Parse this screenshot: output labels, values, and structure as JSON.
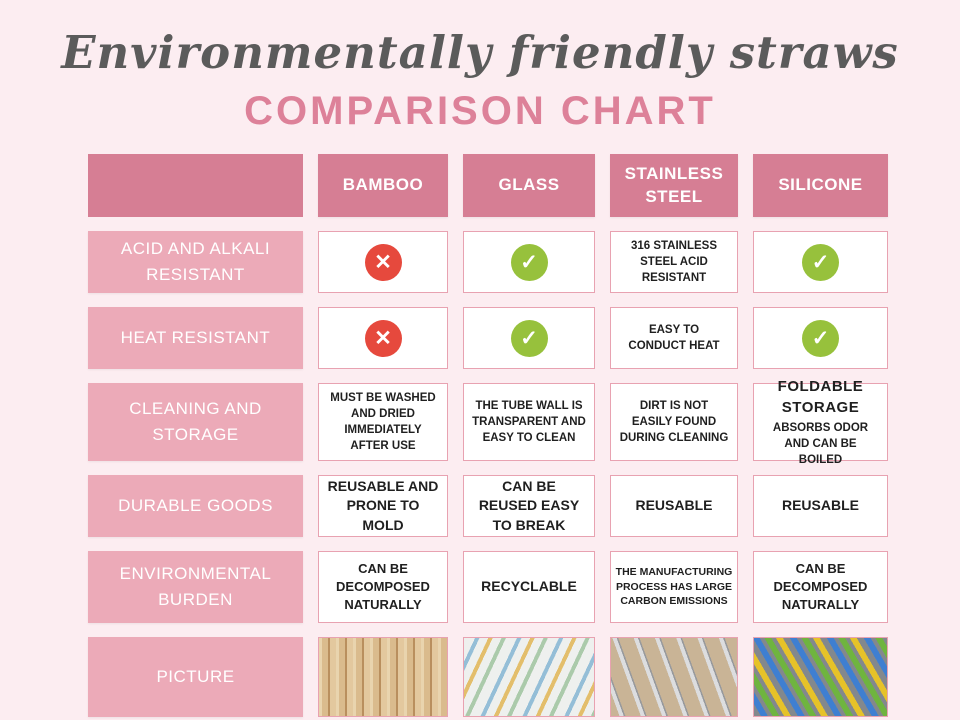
{
  "page": {
    "title_script": "Environmentally friendly straws",
    "title_main": "COMPARISON CHART"
  },
  "colors": {
    "background": "#fcedf1",
    "header_pink": "#d67e94",
    "label_pink": "#ecaab8",
    "title_pink": "#dd8199",
    "cell_border_pink": "#e8a2b1",
    "cross_red": "#e6493d",
    "check_green": "#97c13c"
  },
  "icons": {
    "cross": "✕",
    "check": "✓"
  },
  "table": {
    "columns": [
      "BAMBOO",
      "GLASS",
      "STAINLESS STEEL",
      "SILICONE"
    ],
    "rows": [
      {
        "label": "ACID AND ALKALI RESISTANT",
        "cells": [
          {
            "type": "cross"
          },
          {
            "type": "check"
          },
          {
            "type": "text",
            "text": "316 STAINLESS STEEL ACID RESISTANT"
          },
          {
            "type": "check"
          }
        ]
      },
      {
        "label": "HEAT RESISTANT",
        "cells": [
          {
            "type": "cross"
          },
          {
            "type": "check"
          },
          {
            "type": "text",
            "text": "EASY TO CONDUCT HEAT"
          },
          {
            "type": "check"
          }
        ]
      },
      {
        "label": "CLEANING AND STORAGE",
        "cells": [
          {
            "type": "text",
            "text": "MUST BE WASHED AND DRIED IMMEDIATELY AFTER USE"
          },
          {
            "type": "text",
            "text": "THE TUBE WALL IS TRANSPARENT AND EASY TO CLEAN"
          },
          {
            "type": "text",
            "text": "DIRT IS NOT EASILY FOUND DURING CLEANING"
          },
          {
            "type": "two-line",
            "line1": "FOLDABLE STORAGE",
            "line2": "ABSORBS ODOR AND CAN BE BOILED"
          }
        ]
      },
      {
        "label": "DURABLE GOODS",
        "cells": [
          {
            "type": "text",
            "text": "REUSABLE AND PRONE TO MOLD"
          },
          {
            "type": "text",
            "text": "CAN BE REUSED EASY TO BREAK"
          },
          {
            "type": "text",
            "text": "REUSABLE"
          },
          {
            "type": "text",
            "text": "REUSABLE"
          }
        ]
      },
      {
        "label": "ENVIRONMENTAL BURDEN",
        "cells": [
          {
            "type": "text",
            "text": "CAN BE DECOMPOSED NATURALLY"
          },
          {
            "type": "text",
            "text": "RECYCLABLE"
          },
          {
            "type": "text",
            "text": "THE MANUFACTURING PROCESS HAS LARGE CARBON EMISSIONS"
          },
          {
            "type": "text",
            "text": "CAN BE DECOMPOSED NATURALLY"
          }
        ]
      },
      {
        "label": "PICTURE",
        "cells": [
          {
            "type": "image",
            "name": "bamboo-straws-photo"
          },
          {
            "type": "image",
            "name": "glass-straws-photo"
          },
          {
            "type": "image",
            "name": "stainless-steel-straws-photo"
          },
          {
            "type": "image",
            "name": "silicone-straws-photo"
          }
        ]
      }
    ]
  },
  "chart_data": {
    "type": "table",
    "title": "COMPARISON CHART",
    "subtitle": "Environmentally friendly straws",
    "columns": [
      "",
      "BAMBOO",
      "GLASS",
      "STAINLESS STEEL",
      "SILICONE"
    ],
    "rows": [
      [
        "ACID AND ALKALI RESISTANT",
        "no",
        "yes",
        "316 STAINLESS STEEL ACID RESISTANT",
        "yes"
      ],
      [
        "HEAT RESISTANT",
        "no",
        "yes",
        "EASY TO CONDUCT HEAT",
        "yes"
      ],
      [
        "CLEANING AND STORAGE",
        "MUST BE WASHED AND DRIED IMMEDIATELY AFTER USE",
        "THE TUBE WALL IS TRANSPARENT AND EASY TO CLEAN",
        "DIRT IS NOT EASILY FOUND DURING CLEANING",
        "FOLDABLE STORAGE — ABSORBS ODOR AND CAN BE BOILED"
      ],
      [
        "DURABLE GOODS",
        "REUSABLE AND PRONE TO MOLD",
        "CAN BE REUSED EASY TO BREAK",
        "REUSABLE",
        "REUSABLE"
      ],
      [
        "ENVIRONMENTAL BURDEN",
        "CAN BE DECOMPOSED NATURALLY",
        "RECYCLABLE",
        "THE MANUFACTURING PROCESS HAS LARGE CARBON EMISSIONS",
        "CAN BE DECOMPOSED NATURALLY"
      ],
      [
        "PICTURE",
        "bamboo straws photo",
        "glass straws photo",
        "stainless steel straws photo",
        "silicone straws photo"
      ]
    ],
    "legend_position": "none",
    "grid": false
  }
}
